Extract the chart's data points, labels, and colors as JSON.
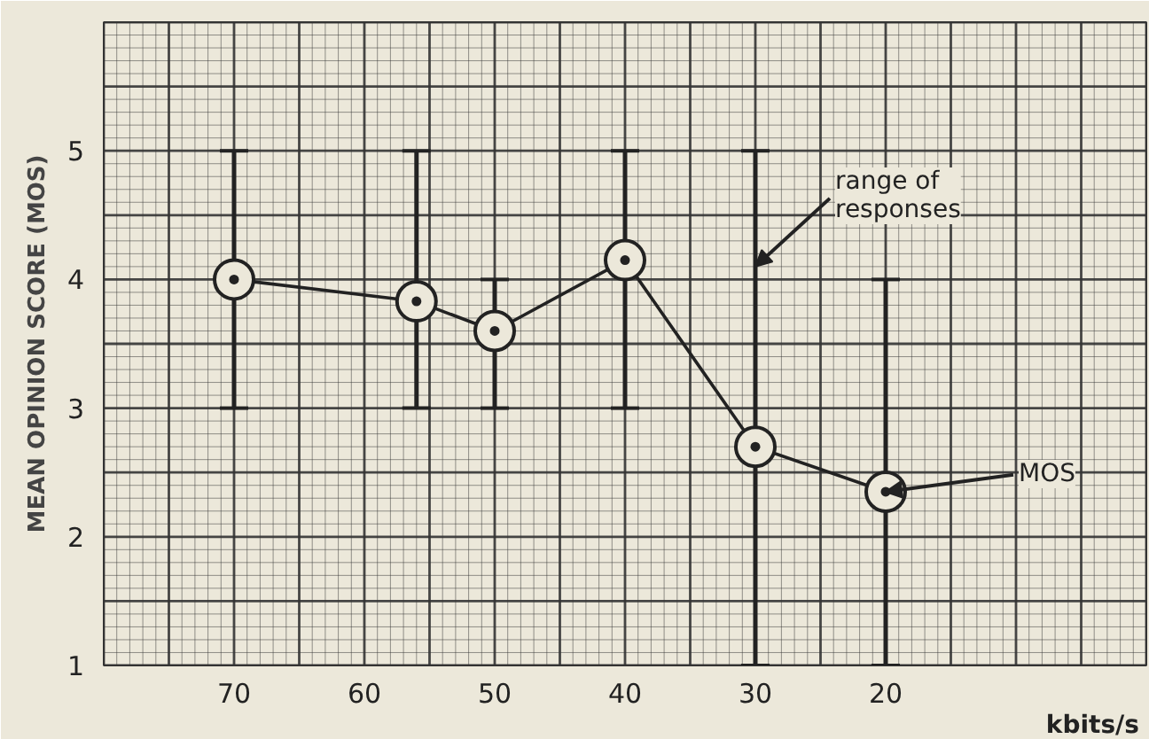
{
  "chart_data": {
    "type": "line",
    "xlabel": "kbits/s",
    "ylabel": "MEAN OPINION SCORE (MOS)",
    "x": [
      70,
      56,
      50,
      40,
      30,
      20
    ],
    "values": [
      4.0,
      3.83,
      3.6,
      4.15,
      2.7,
      2.35
    ],
    "errors": [
      [
        3,
        5
      ],
      [
        3,
        5
      ],
      [
        3,
        4
      ],
      [
        3,
        5
      ],
      [
        1,
        5
      ],
      [
        1,
        4
      ]
    ],
    "color": "#222222",
    "marker": "circle",
    "line_style": "solid",
    "grid": true,
    "xlim": [
      80,
      0
    ],
    "xticks": [
      70,
      60,
      50,
      40,
      30,
      20
    ],
    "ylim": [
      1,
      6
    ],
    "yticks": [
      1,
      2,
      3,
      4,
      5
    ],
    "annotations": [
      {
        "text": "range of\nresponses",
        "x": 30,
        "y": 4.1
      },
      {
        "text": "MOS",
        "x": 20,
        "y": 2.35
      }
    ]
  }
}
